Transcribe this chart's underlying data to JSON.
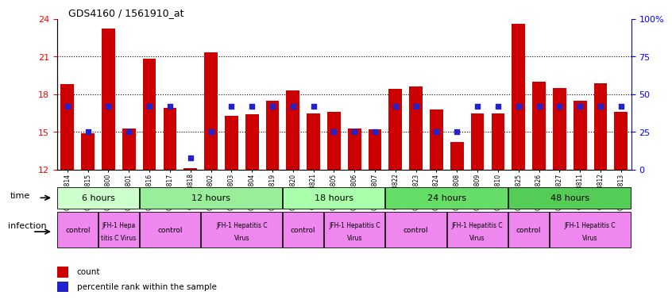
{
  "title": "GDS4160 / 1561910_at",
  "samples": [
    "GSM523814",
    "GSM523815",
    "GSM523800",
    "GSM523801",
    "GSM523816",
    "GSM523817",
    "GSM523818",
    "GSM523802",
    "GSM523803",
    "GSM523804",
    "GSM523819",
    "GSM523820",
    "GSM523821",
    "GSM523805",
    "GSM523806",
    "GSM523807",
    "GSM523822",
    "GSM523823",
    "GSM523824",
    "GSM523808",
    "GSM523809",
    "GSM523810",
    "GSM523825",
    "GSM523826",
    "GSM523827",
    "GSM523811",
    "GSM523812",
    "GSM523813"
  ],
  "count_values": [
    18.8,
    14.9,
    23.2,
    15.3,
    20.8,
    16.9,
    12.1,
    21.3,
    16.3,
    16.4,
    17.5,
    18.3,
    16.5,
    16.6,
    15.3,
    15.2,
    18.4,
    18.6,
    16.8,
    14.2,
    16.5,
    16.5,
    23.6,
    19.0,
    18.5,
    17.5,
    18.9,
    16.6
  ],
  "percentile_values": [
    42,
    25,
    42,
    25,
    42,
    42,
    8,
    25,
    42,
    42,
    42,
    42,
    42,
    25,
    25,
    25,
    42,
    42,
    25,
    25,
    42,
    42,
    42,
    42,
    42,
    42,
    42,
    42
  ],
  "ylim_left": [
    12,
    24
  ],
  "ylim_right": [
    0,
    100
  ],
  "yticks_left": [
    12,
    15,
    18,
    21,
    24
  ],
  "yticks_right": [
    0,
    25,
    50,
    75,
    100
  ],
  "bar_color": "#cc0000",
  "dot_color": "#2222cc",
  "bar_width": 0.65,
  "time_groups": [
    {
      "label": "6 hours",
      "start": 0,
      "end": 4,
      "color": "#ccffcc"
    },
    {
      "label": "12 hours",
      "start": 4,
      "end": 11,
      "color": "#99ee99"
    },
    {
      "label": "18 hours",
      "start": 11,
      "end": 16,
      "color": "#aaffaa"
    },
    {
      "label": "24 hours",
      "start": 16,
      "end": 22,
      "color": "#66dd66"
    },
    {
      "label": "48 hours",
      "start": 22,
      "end": 28,
      "color": "#55cc55"
    }
  ],
  "infection_groups": [
    {
      "label": "control",
      "start": 0,
      "end": 2,
      "multiline": false
    },
    {
      "label": "JFH-1 Hepa\ntitis C Virus",
      "start": 2,
      "end": 4,
      "multiline": true
    },
    {
      "label": "control",
      "start": 4,
      "end": 7,
      "multiline": false
    },
    {
      "label": "JFH-1 Hepatitis C\nVirus",
      "start": 7,
      "end": 11,
      "multiline": true
    },
    {
      "label": "control",
      "start": 11,
      "end": 13,
      "multiline": false
    },
    {
      "label": "JFH-1 Hepatitis C\nVirus",
      "start": 13,
      "end": 16,
      "multiline": true
    },
    {
      "label": "control",
      "start": 16,
      "end": 19,
      "multiline": false
    },
    {
      "label": "JFH-1 Hepatitis C\nVirus",
      "start": 19,
      "end": 22,
      "multiline": true
    },
    {
      "label": "control",
      "start": 22,
      "end": 24,
      "multiline": false
    },
    {
      "label": "JFH-1 Hepatitis C\nVirus",
      "start": 24,
      "end": 28,
      "multiline": true
    }
  ],
  "inf_color": "#ee88ee",
  "background_color": "#ffffff",
  "plot_bg_color": "#ffffff",
  "legend_count_color": "#cc0000",
  "legend_dot_color": "#2222cc"
}
